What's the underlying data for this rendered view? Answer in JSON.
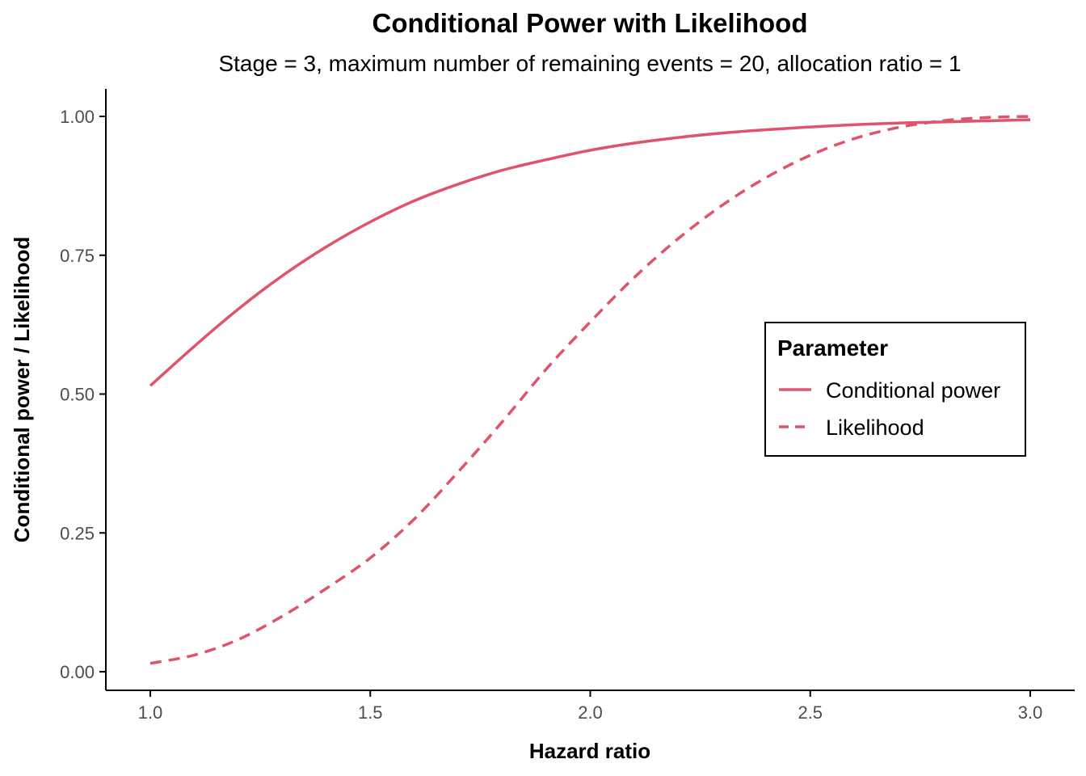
{
  "chart_data": {
    "type": "line",
    "title": "Conditional Power with Likelihood",
    "subtitle": "Stage = 3, maximum number of remaining events = 20, allocation ratio = 1",
    "xlabel": "Hazard ratio",
    "ylabel": "Conditional power / Likelihood",
    "xlim": [
      1.0,
      3.0
    ],
    "ylim": [
      0.0,
      1.0
    ],
    "x_ticks": [
      "1.0",
      "1.5",
      "2.0",
      "2.5",
      "3.0"
    ],
    "y_ticks": [
      "0.00",
      "0.25",
      "0.50",
      "0.75",
      "1.00"
    ],
    "grid": false,
    "legend": {
      "title": "Parameter",
      "position": "right",
      "entries": [
        "Conditional power",
        "Likelihood"
      ]
    },
    "x": [
      1.0,
      1.1,
      1.2,
      1.3,
      1.4,
      1.5,
      1.6,
      1.7,
      1.8,
      1.9,
      2.0,
      2.1,
      2.2,
      2.3,
      2.4,
      2.5,
      2.6,
      2.7,
      2.8,
      2.9,
      3.0
    ],
    "series": [
      {
        "name": "Conditional power",
        "line_style": "solid",
        "color": "#DF536B",
        "values": [
          0.515,
          0.586,
          0.653,
          0.713,
          0.765,
          0.81,
          0.848,
          0.878,
          0.903,
          0.922,
          0.939,
          0.952,
          0.962,
          0.97,
          0.976,
          0.981,
          0.985,
          0.988,
          0.99,
          0.992,
          0.994
        ]
      },
      {
        "name": "Likelihood",
        "line_style": "dashed",
        "color": "#DF536B",
        "values": [
          0.015,
          0.03,
          0.058,
          0.1,
          0.15,
          0.205,
          0.275,
          0.36,
          0.45,
          0.545,
          0.63,
          0.71,
          0.78,
          0.84,
          0.89,
          0.93,
          0.96,
          0.98,
          0.992,
          0.998,
          1.0
        ]
      }
    ]
  }
}
